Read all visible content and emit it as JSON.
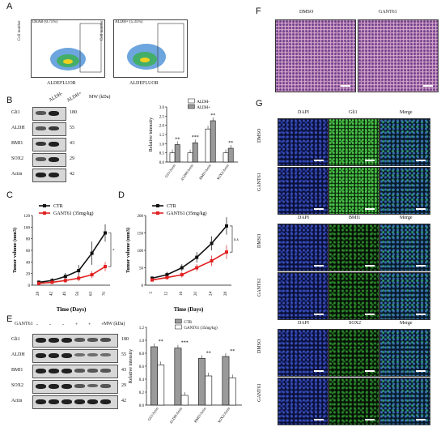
{
  "panels": {
    "A": "A",
    "B": "B",
    "C": "C",
    "D": "D",
    "E": "E",
    "F": "F",
    "G": "G"
  },
  "A": {
    "left_title": "DEAB (0.75%)",
    "right_title": "ALDH+ (5.35%)",
    "ylabel": "Cell number",
    "xlabel": "ALDEFLUOR"
  },
  "B": {
    "lanes": [
      "ALDH-",
      "ALDH+"
    ],
    "mw_title": "MW (kDa)",
    "rows": [
      {
        "name": "Gli1",
        "mw": "180"
      },
      {
        "name": "ALDH",
        "mw": "55"
      },
      {
        "name": "BMI1",
        "mw": "43"
      },
      {
        "name": "SOX2",
        "mw": "29"
      },
      {
        "name": "Actin",
        "mw": "42"
      }
    ],
    "legend": [
      "ALDH-",
      "ALDH+"
    ],
    "ylabel": "Relative intensity"
  },
  "C": {
    "ylabel": "Tumor volume (mm3)",
    "xlabel": "Time (Days)",
    "legend": [
      "CTR",
      "GANT61 (35mg/kg)"
    ],
    "sig": "*"
  },
  "D": {
    "ylabel": "Tumor volume (mm3)",
    "xlabel": "Time (Days)",
    "legend": [
      "CTR",
      "GANT61 (35mg/kg)"
    ],
    "sig": "n.s"
  },
  "E": {
    "gant_label": "GANT61",
    "signs": [
      "-",
      "-",
      "-",
      "+",
      "+",
      "+"
    ],
    "mw_title": "MW (kDa)",
    "rows": [
      {
        "name": "Gli1",
        "mw": "180"
      },
      {
        "name": "ALDH",
        "mw": "55"
      },
      {
        "name": "BMI1",
        "mw": "43"
      },
      {
        "name": "SOX2",
        "mw": "29"
      },
      {
        "name": "Actin",
        "mw": "42"
      }
    ],
    "legend": [
      "CTR",
      "GANT61 (35mg/kg)"
    ],
    "ylabel": "Relative intensity"
  },
  "F": {
    "cols": [
      "DMSO",
      "GANT61"
    ]
  },
  "G": {
    "blocks": [
      {
        "cols": [
          "DAPI",
          "Gli1",
          "Merge"
        ]
      },
      {
        "cols": [
          "DAPI",
          "BMI1",
          "Merge"
        ]
      },
      {
        "cols": [
          "DAPI",
          "SOX2",
          "Merge"
        ]
      }
    ],
    "rows": [
      "DMSO",
      "GANT61"
    ]
  },
  "chart_data": [
    {
      "type": "bar",
      "panel": "B",
      "categories": [
        "Gli1/Actin",
        "ALDH/Actin",
        "BMI1/Actin",
        "SOX2/Actin"
      ],
      "series": [
        {
          "name": "ALDH-",
          "values": [
            0.5,
            0.5,
            1.8,
            0.5
          ]
        },
        {
          "name": "ALDH+",
          "values": [
            0.95,
            1.05,
            2.25,
            0.75
          ]
        }
      ],
      "yticks": [
        "0.0",
        "0.5",
        "1.0",
        "1.5",
        "2.0",
        "2.5",
        "3.0"
      ],
      "ylim": [
        0,
        3
      ],
      "ylabel": "Relative intensity",
      "annotations": [
        "**",
        "***",
        "**",
        "**"
      ],
      "colors": {
        "ALDH-": "#ffffff",
        "ALDH+": "#9a9a9a"
      }
    },
    {
      "type": "line",
      "panel": "C",
      "x": [
        28,
        42,
        49,
        56,
        63,
        70
      ],
      "series": [
        {
          "name": "CTR",
          "values": [
            5,
            8,
            15,
            25,
            55,
            90
          ],
          "err": [
            3,
            4,
            6,
            10,
            20,
            15
          ]
        },
        {
          "name": "GANT61 (35mg/kg)",
          "values": [
            3,
            5,
            8,
            12,
            18,
            32
          ],
          "err": [
            2,
            3,
            4,
            5,
            6,
            8
          ]
        }
      ],
      "yticks": [
        "0",
        "20",
        "40",
        "60",
        "80",
        "100",
        "120"
      ],
      "ylim": [
        0,
        120
      ],
      "xlabel": "Time (Days)",
      "ylabel": "Tumor volume (mm3)",
      "colors": {
        "CTR": "#111111",
        "GANT61 (35mg/kg)": "#e02020"
      }
    },
    {
      "type": "line",
      "panel": "D",
      "x": [
        5,
        12,
        16,
        20,
        24,
        28
      ],
      "series": [
        {
          "name": "CTR",
          "values": [
            20,
            30,
            50,
            80,
            120,
            170
          ],
          "err": [
            5,
            8,
            10,
            15,
            20,
            25
          ]
        },
        {
          "name": "GANT61 (35mg/kg)",
          "values": [
            15,
            22,
            30,
            50,
            70,
            95
          ],
          "err": [
            5,
            6,
            8,
            10,
            15,
            20
          ]
        }
      ],
      "yticks": [
        "0",
        "50",
        "100",
        "150",
        "200"
      ],
      "ylim": [
        0,
        200
      ],
      "xlabel": "Time (Days)",
      "ylabel": "Tumor volume (mm3)",
      "colors": {
        "CTR": "#111111",
        "GANT61 (35mg/kg)": "#e02020"
      }
    },
    {
      "type": "bar",
      "panel": "E",
      "categories": [
        "Gli1/Actin",
        "ALDH/Actin",
        "BMI1/Actin",
        "SOX2/Actin"
      ],
      "series": [
        {
          "name": "CTR",
          "values": [
            0.9,
            0.88,
            0.72,
            0.75
          ]
        },
        {
          "name": "GANT61 (35mg/kg)",
          "values": [
            0.62,
            0.15,
            0.45,
            0.42
          ]
        }
      ],
      "yticks": [
        "0.0",
        "0.2",
        "0.4",
        "0.6",
        "0.8",
        "1.0",
        "1.2"
      ],
      "ylim": [
        0,
        1.2
      ],
      "ylabel": "Relative intensity",
      "annotations": [
        "**",
        "***",
        "**",
        "**"
      ],
      "colors": {
        "CTR": "#9a9a9a",
        "GANT61 (35mg/kg)": "#ffffff"
      }
    }
  ]
}
